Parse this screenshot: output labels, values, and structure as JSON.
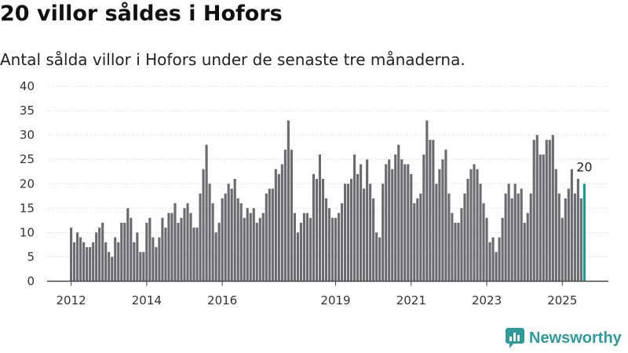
{
  "header": {
    "title": "20 villor såldes i Hofors",
    "subtitle": "Antal sålda villor i Hofors under de senaste tre månaderna."
  },
  "brand": {
    "name": "Newsworthy",
    "color": "#2f9a9a"
  },
  "chart_data": {
    "type": "bar",
    "title": "20 villor såldes i Hofors",
    "subtitle": "Antal sålda villor i Hofors under de senaste tre månaderna.",
    "xlabel": "",
    "ylabel": "",
    "ylim": [
      0,
      40
    ],
    "yticks": [
      0,
      5,
      10,
      15,
      20,
      25,
      30,
      35,
      40
    ],
    "xticks": [
      "2012",
      "2014",
      "2016",
      "2019",
      "2021",
      "2023",
      "2025"
    ],
    "grid": true,
    "bar_color": "#6b6a6f",
    "highlight_color": "#179a93",
    "annotation": "20",
    "series": [
      {
        "values": [
          11,
          8,
          10,
          9,
          8,
          7,
          7,
          8,
          10,
          11,
          12,
          8,
          6,
          5,
          9,
          8,
          12,
          12,
          15,
          13,
          8,
          10,
          6,
          6,
          12,
          13,
          9,
          7,
          9,
          13,
          11,
          14,
          14,
          16,
          12,
          13,
          15,
          16,
          14,
          11,
          11,
          18,
          23,
          28,
          20,
          16,
          10,
          12,
          17,
          18,
          20,
          19,
          21,
          17,
          16,
          13,
          15,
          14,
          15,
          12,
          13,
          14,
          18,
          19,
          19,
          23,
          22,
          24,
          27,
          33,
          27,
          14,
          10,
          12,
          14,
          14,
          13,
          22,
          21,
          26,
          21,
          17,
          15,
          13,
          13,
          14,
          16,
          20,
          20,
          21,
          26,
          22,
          24,
          19,
          25,
          20,
          17,
          10,
          9,
          20,
          24,
          25,
          23,
          26,
          28,
          25,
          24,
          24,
          22,
          16,
          17,
          18,
          26,
          33,
          29,
          29,
          20,
          23,
          25,
          27,
          18,
          14,
          12,
          12,
          15,
          18,
          21,
          23,
          24,
          23,
          20,
          16,
          13,
          8,
          9,
          6,
          9,
          13,
          18,
          20,
          17,
          20,
          18,
          19,
          12,
          14,
          18,
          29,
          30,
          26,
          26,
          29,
          29,
          30,
          23,
          18,
          13,
          17,
          19,
          23,
          18,
          21,
          17,
          20
        ],
        "highlight_last": true
      }
    ]
  }
}
